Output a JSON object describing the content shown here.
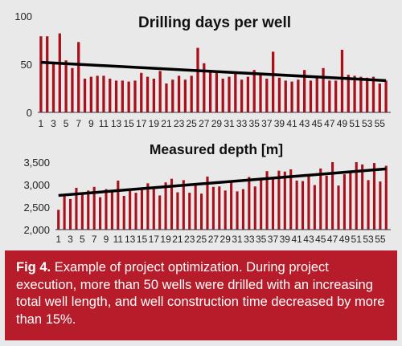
{
  "colors": {
    "background": "#eae9e9",
    "bar": "#a8111c",
    "trend": "#000000",
    "caption_bg": "#b71c2a",
    "caption_text": "#ffffff"
  },
  "chart_data": [
    {
      "type": "bar",
      "title": "Drilling days per well",
      "xlabel": "",
      "ylabel": "",
      "x": [
        1,
        2,
        3,
        4,
        5,
        6,
        7,
        8,
        9,
        10,
        11,
        12,
        13,
        14,
        15,
        16,
        17,
        18,
        19,
        20,
        21,
        22,
        23,
        24,
        25,
        26,
        27,
        28,
        29,
        30,
        31,
        32,
        33,
        34,
        35,
        36,
        37,
        38,
        39,
        40,
        41,
        42,
        43,
        44,
        45,
        46,
        47,
        48,
        49,
        50,
        51,
        52,
        53,
        54,
        55,
        56
      ],
      "x_tick_labels": [
        "1",
        "3",
        "5",
        "7",
        "9",
        "11",
        "13",
        "15",
        "17",
        "19",
        "21",
        "23",
        "25",
        "27",
        "29",
        "31",
        "33",
        "35",
        "37",
        "39",
        "41",
        "43",
        "45",
        "47",
        "49",
        "51",
        "53",
        "55"
      ],
      "values": [
        79,
        79,
        52,
        82,
        54,
        46,
        73,
        35,
        37,
        38,
        38,
        35,
        33,
        33,
        32,
        33,
        41,
        37,
        35,
        43,
        30,
        34,
        38,
        34,
        38,
        67,
        51,
        44,
        42,
        35,
        37,
        41,
        34,
        37,
        44,
        41,
        35,
        63,
        36,
        33,
        32,
        34,
        44,
        33,
        38,
        46,
        33,
        33,
        65,
        39,
        38,
        37,
        36,
        37,
        30,
        33
      ],
      "y_ticks": [
        0,
        50,
        100
      ],
      "ylim": [
        0,
        100
      ],
      "trend": {
        "start": 52,
        "end": 33
      },
      "grid": false,
      "legend": "none"
    },
    {
      "type": "bar",
      "title": "Measured depth [m]",
      "xlabel": "",
      "ylabel": "",
      "x": [
        1,
        2,
        3,
        4,
        5,
        6,
        7,
        8,
        9,
        10,
        11,
        12,
        13,
        14,
        15,
        16,
        17,
        18,
        19,
        20,
        21,
        22,
        23,
        24,
        25,
        26,
        27,
        28,
        29,
        30,
        31,
        32,
        33,
        34,
        35,
        36,
        37,
        38,
        39,
        40,
        41,
        42,
        43,
        44,
        45,
        46,
        47,
        48,
        49,
        50,
        51,
        52,
        53,
        54,
        55,
        56
      ],
      "x_tick_labels": [
        "1",
        "3",
        "5",
        "7",
        "9",
        "11",
        "13",
        "15",
        "17",
        "19",
        "21",
        "23",
        "25",
        "27",
        "29",
        "31",
        "33",
        "35",
        "37",
        "39",
        "41",
        "43",
        "45",
        "47",
        "49",
        "51",
        "53",
        "55"
      ],
      "values": [
        2440,
        2780,
        2680,
        2930,
        2780,
        2870,
        2950,
        2720,
        2900,
        2880,
        3090,
        2750,
        2880,
        2820,
        2920,
        3030,
        2950,
        2760,
        3050,
        3130,
        2830,
        3100,
        2820,
        3000,
        2800,
        3180,
        2950,
        2960,
        2870,
        3050,
        2850,
        2900,
        3170,
        2960,
        3140,
        3300,
        3150,
        3310,
        3290,
        3340,
        3090,
        3080,
        3210,
        2990,
        3360,
        3200,
        3500,
        2980,
        3230,
        3280,
        3500,
        3450,
        3100,
        3480,
        3070,
        3420
      ],
      "y_ticks": [
        2000,
        2500,
        3000,
        3500
      ],
      "y_tick_labels": [
        "2,000",
        "2,500",
        "3,000",
        "3,500"
      ],
      "ylim": [
        2000,
        3500
      ],
      "trend": {
        "start": 2760,
        "end": 3350
      },
      "grid": false,
      "legend": "none"
    }
  ],
  "caption": {
    "label": "Fig 4.",
    "text": "Example of project optimization. During project execution, more than 50 wells were drilled with an increasing total well length, and well construction time decreased by more than 15%."
  }
}
